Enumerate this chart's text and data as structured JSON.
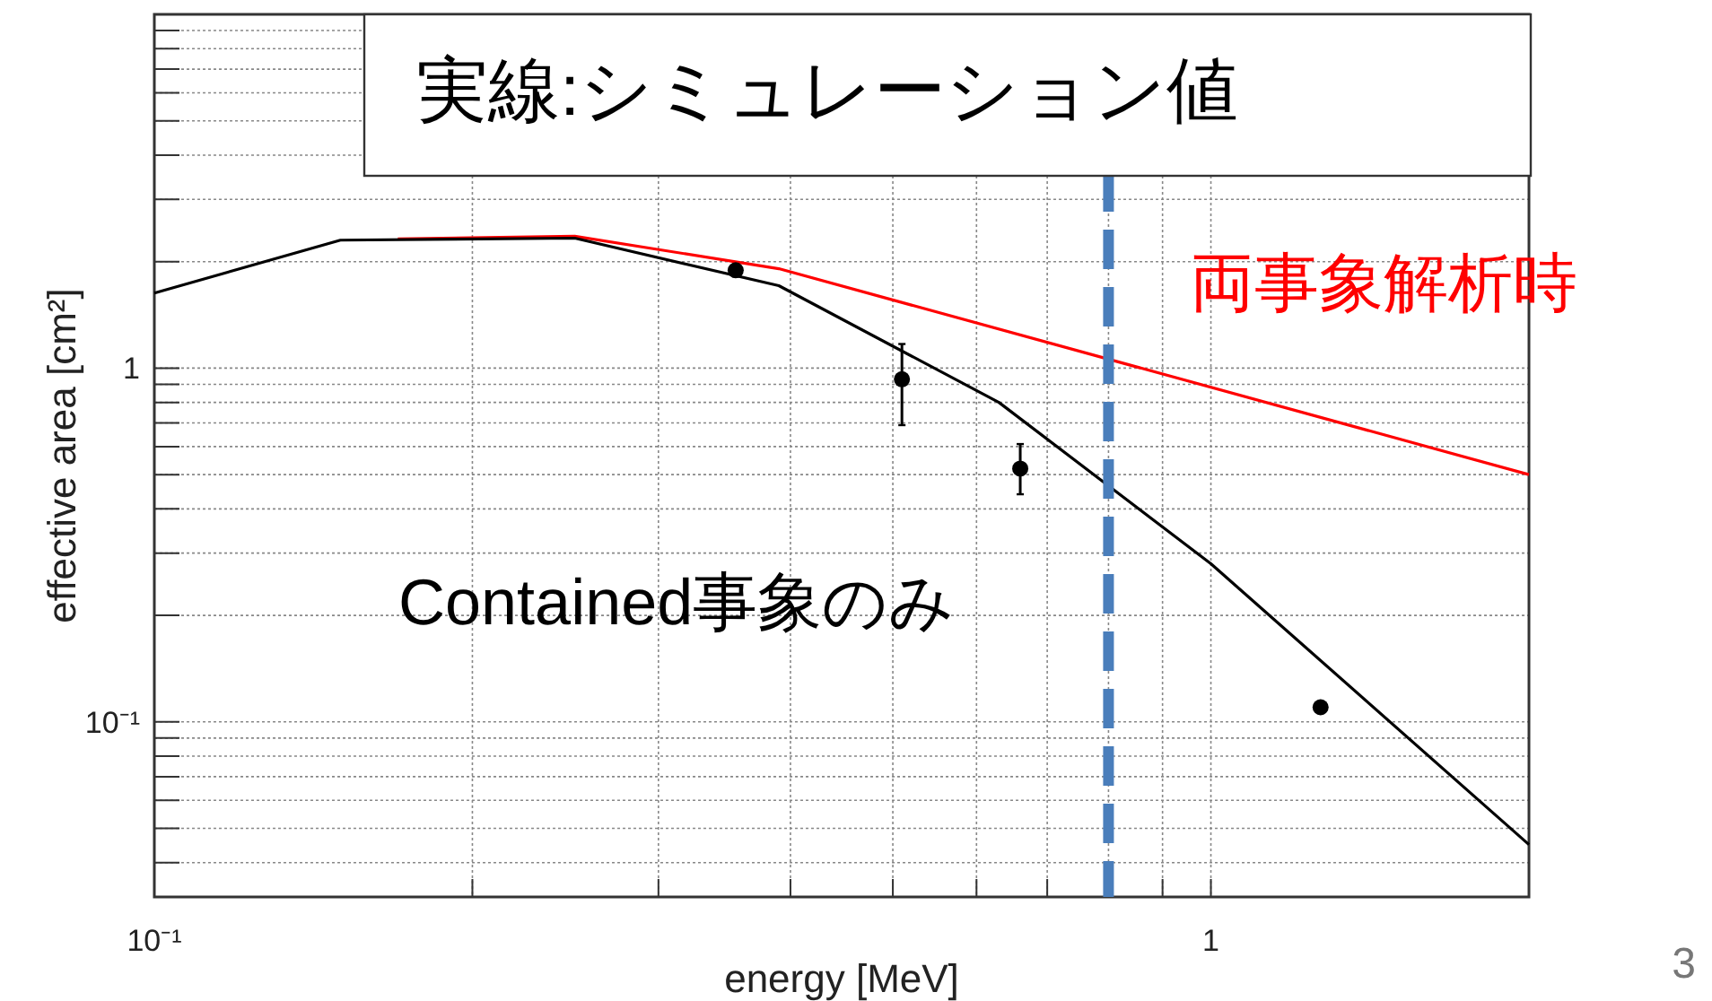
{
  "chart_data": {
    "type": "line",
    "xlabel": "energy [MeV]",
    "ylabel": "effective area [cm²]",
    "log": "xy",
    "grid": true,
    "xlim": [
      0.1,
      2
    ],
    "ylim": [
      0.032,
      10
    ],
    "xticks": [
      {
        "value": 0.1,
        "label": "10⁻¹"
      },
      {
        "value": 0.2,
        "label": null
      },
      {
        "value": 0.3,
        "label": null
      },
      {
        "value": 0.4,
        "label": null
      },
      {
        "value": 0.5,
        "label": null
      },
      {
        "value": 0.6,
        "label": null
      },
      {
        "value": 0.7,
        "label": null
      },
      {
        "value": 0.8,
        "label": null
      },
      {
        "value": 0.9,
        "label": null
      },
      {
        "value": 1,
        "label": "1"
      },
      {
        "value": 2,
        "label": null
      }
    ],
    "yticks": [
      {
        "value": 0.04,
        "label": null
      },
      {
        "value": 0.05,
        "label": null
      },
      {
        "value": 0.06,
        "label": null
      },
      {
        "value": 0.07,
        "label": null
      },
      {
        "value": 0.08,
        "label": null
      },
      {
        "value": 0.09,
        "label": null
      },
      {
        "value": 0.1,
        "label": "10⁻¹"
      },
      {
        "value": 0.2,
        "label": null
      },
      {
        "value": 0.3,
        "label": null
      },
      {
        "value": 0.4,
        "label": null
      },
      {
        "value": 0.5,
        "label": null
      },
      {
        "value": 0.6,
        "label": null
      },
      {
        "value": 0.7,
        "label": null
      },
      {
        "value": 0.8,
        "label": null
      },
      {
        "value": 0.9,
        "label": null
      },
      {
        "value": 1,
        "label": "1"
      },
      {
        "value": 2,
        "label": null
      },
      {
        "value": 3,
        "label": null
      },
      {
        "value": 4,
        "label": null
      },
      {
        "value": 5,
        "label": null
      },
      {
        "value": 6,
        "label": null
      },
      {
        "value": 7,
        "label": null
      },
      {
        "value": 8,
        "label": null
      },
      {
        "value": 9,
        "label": null
      },
      {
        "value": 10,
        "label": null
      }
    ],
    "series": [
      {
        "name": "両事象解析時",
        "type": "line",
        "color": "#ff0000",
        "x": [
          0.17,
          0.25,
          0.39,
          2
        ],
        "values": [
          2.32,
          2.36,
          1.91,
          0.5
        ]
      },
      {
        "name": "Contained事象のみ",
        "type": "line",
        "color": "#000000",
        "x": [
          0.1,
          0.15,
          0.25,
          0.39,
          0.63,
          1,
          2
        ],
        "values": [
          1.63,
          2.3,
          2.33,
          1.71,
          0.8,
          0.28,
          0.045
        ]
      },
      {
        "type": "scatter",
        "color": "#000000",
        "marker": "circle",
        "x": [
          0.355,
          0.51,
          0.66,
          1.27
        ],
        "values": [
          1.89,
          0.93,
          0.52,
          0.11
        ],
        "errors": [
          null,
          [
            0.69,
            1.17
          ],
          [
            0.44,
            0.61
          ],
          null
        ]
      }
    ],
    "ref_lines": [
      {
        "axis": "x",
        "value": 0.8,
        "color": "#4a7ebb",
        "line_style": "dashed"
      }
    ],
    "annotations": [
      "実線:シミュレーション値",
      "3"
    ]
  }
}
